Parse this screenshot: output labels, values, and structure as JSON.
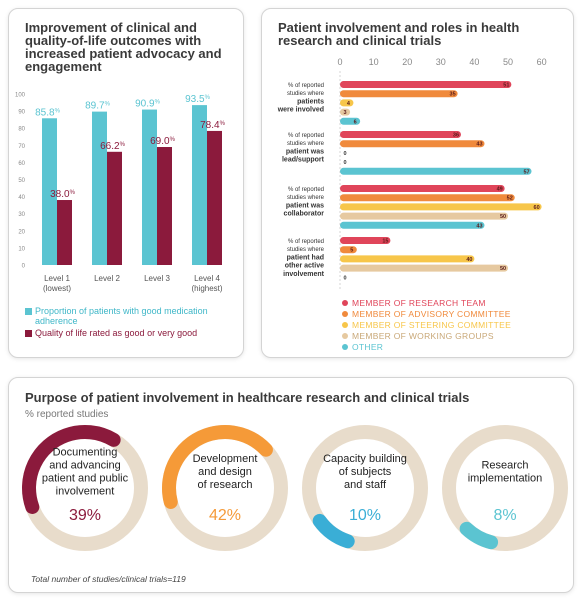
{
  "panel1": {
    "title": "Improvement of clinical and quality-of-life outcomes with increased patient advocacy and engagement",
    "legend": [
      {
        "label": "Proportion of patients with good medication adherence",
        "color": "#5bc4d1"
      },
      {
        "label": "Quality of life rated as good or very good",
        "color": "#8b1a3c"
      }
    ]
  },
  "panel2": {
    "title": "Patient involvement and roles in health research and clinical trials",
    "legend": [
      {
        "label": "MEMBER OF RESEARCH TEAM",
        "color": "#e0455a"
      },
      {
        "label": "MEMBER OF ADVISORY COMMITTEE",
        "color": "#f08a3c"
      },
      {
        "label": "MEMBER OF STEERING COMMITTEE",
        "color": "#f7c64a"
      },
      {
        "label": "MEMBER OF WORKING GROUPS",
        "color": "#e6c9a0"
      },
      {
        "label": "OTHER",
        "color": "#5bc4d1"
      }
    ]
  },
  "panel3": {
    "title": "Purpose of patient involvement in healthcare research and clinical trials",
    "subtitle": "%  reported studies",
    "footnote": "Total number of studies/clinical trials=119"
  },
  "chart_data": [
    {
      "type": "bar",
      "categories": [
        [
          "Level 1",
          "(lowest)"
        ],
        [
          "Level 2"
        ],
        [
          "Level 3"
        ],
        [
          "Level 4",
          "(highest)"
        ]
      ],
      "ylim": [
        0,
        100
      ],
      "yticks": [
        0,
        10,
        20,
        30,
        40,
        50,
        60,
        70,
        80,
        90,
        100
      ],
      "series": [
        {
          "name": "Proportion of patients with good medication adherence",
          "values": [
            85.8,
            89.7,
            90.9,
            93.5
          ],
          "labels": [
            "85.8",
            "89.7",
            "90.9",
            "93.5"
          ],
          "color": "#5bc4d1"
        },
        {
          "name": "Quality of life rated as good or very good",
          "values": [
            38.0,
            66.2,
            69.0,
            78.4
          ],
          "labels": [
            "38.0",
            "66.2",
            "69.0",
            "78.4"
          ],
          "color": "#8b1a3c"
        }
      ],
      "percent_sign": "%"
    },
    {
      "type": "bar",
      "orientation": "horizontal",
      "xticks": [
        0,
        10,
        20,
        30,
        40,
        50,
        60,
        70,
        80,
        90,
        100
      ],
      "xlim": [
        0,
        100
      ],
      "groups": [
        {
          "prefix": "% of reported studies where",
          "bold": [
            "patients",
            "were involved"
          ],
          "values": [
            51,
            35,
            4,
            3,
            6
          ]
        },
        {
          "prefix": "% of reported studies where",
          "bold": [
            "patient was",
            "lead/support"
          ],
          "values": [
            36,
            43,
            0,
            0,
            57
          ]
        },
        {
          "prefix": "% of reported studies where",
          "bold": [
            "patient was",
            "collaborator"
          ],
          "values": [
            49,
            52,
            60,
            50,
            43
          ]
        },
        {
          "prefix": "% of reported studies where",
          "bold": [
            "patient had",
            "other active",
            "involvement"
          ],
          "values": [
            15,
            5,
            40,
            50,
            0
          ]
        }
      ],
      "series_colors": [
        "#e0455a",
        "#f08a3c",
        "#f7c64a",
        "#e6c9a0",
        "#5bc4d1"
      ]
    },
    {
      "type": "pie",
      "items": [
        {
          "label": [
            "Documenting",
            "and advancing",
            "patient and public",
            "involvement"
          ],
          "value": 39,
          "display": "39%",
          "color": "#8b1a3c"
        },
        {
          "label": [
            "Development",
            "and design",
            "of research"
          ],
          "value": 42,
          "display": "42%",
          "color": "#f59a38"
        },
        {
          "label": [
            "Capacity building",
            "of subjects",
            "and staff"
          ],
          "value": 10,
          "display": "10%",
          "color": "#3aaed6"
        },
        {
          "label": [
            "Research",
            "implementation"
          ],
          "value": 8,
          "display": "8%",
          "color": "#5bc4d1"
        }
      ],
      "track_color": "#e8dccb"
    }
  ]
}
